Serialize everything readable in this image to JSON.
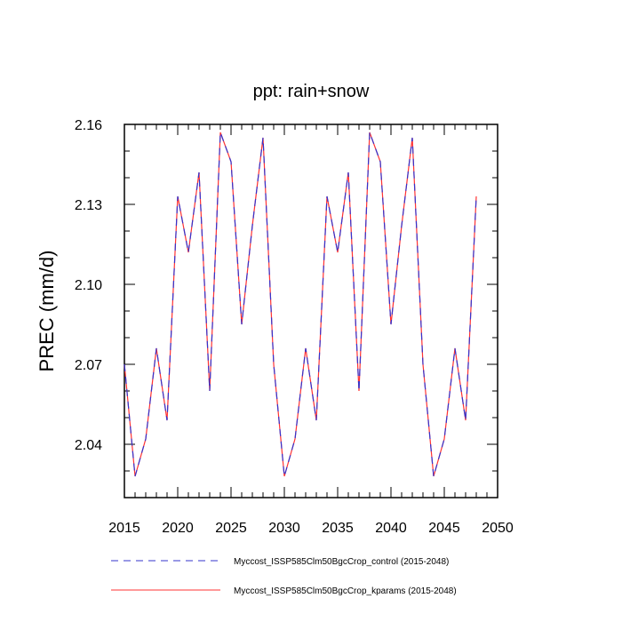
{
  "chart_data": {
    "type": "line",
    "title": "ppt: rain+snow",
    "xlabel": "",
    "ylabel": "PREC  (mm/d)",
    "xlim": [
      2015,
      2050
    ],
    "ylim": [
      2.02,
      2.16
    ],
    "xticks": [
      2015,
      2020,
      2025,
      2030,
      2035,
      2040,
      2045,
      2050
    ],
    "yticks": [
      "2.04",
      "2.07",
      "2.10",
      "2.13",
      "2.16"
    ],
    "grid": false,
    "legend_position": "bottom",
    "x": [
      2015,
      2016,
      2017,
      2018,
      2019,
      2020,
      2021,
      2022,
      2023,
      2024,
      2025,
      2026,
      2027,
      2028,
      2029,
      2030,
      2031,
      2032,
      2033,
      2034,
      2035,
      2036,
      2037,
      2038,
      2039,
      2040,
      2041,
      2042,
      2043,
      2044,
      2045,
      2046,
      2047,
      2048
    ],
    "series": [
      {
        "name": "Myccost_ISSP585Clm50BgcCrop_control (2015-2048)",
        "color": "#3333cc",
        "style": "dashed",
        "values": [
          2.07,
          2.028,
          2.042,
          2.076,
          2.049,
          2.133,
          2.112,
          2.142,
          2.06,
          2.157,
          2.146,
          2.085,
          2.122,
          2.155,
          2.07,
          2.028,
          2.042,
          2.076,
          2.049,
          2.133,
          2.112,
          2.142,
          2.06,
          2.157,
          2.146,
          2.085,
          2.122,
          2.155,
          2.07,
          2.028,
          2.042,
          2.076,
          2.049,
          2.133
        ]
      },
      {
        "name": "Myccost_ISSP585Clm50BgcCrop_kparams (2015-2048)",
        "color": "#ff3333",
        "style": "solid",
        "values": [
          2.07,
          2.028,
          2.042,
          2.076,
          2.049,
          2.133,
          2.112,
          2.142,
          2.06,
          2.157,
          2.146,
          2.085,
          2.122,
          2.155,
          2.07,
          2.028,
          2.042,
          2.076,
          2.049,
          2.133,
          2.112,
          2.142,
          2.06,
          2.157,
          2.146,
          2.085,
          2.122,
          2.155,
          2.07,
          2.028,
          2.042,
          2.076,
          2.049,
          2.133
        ]
      }
    ]
  }
}
